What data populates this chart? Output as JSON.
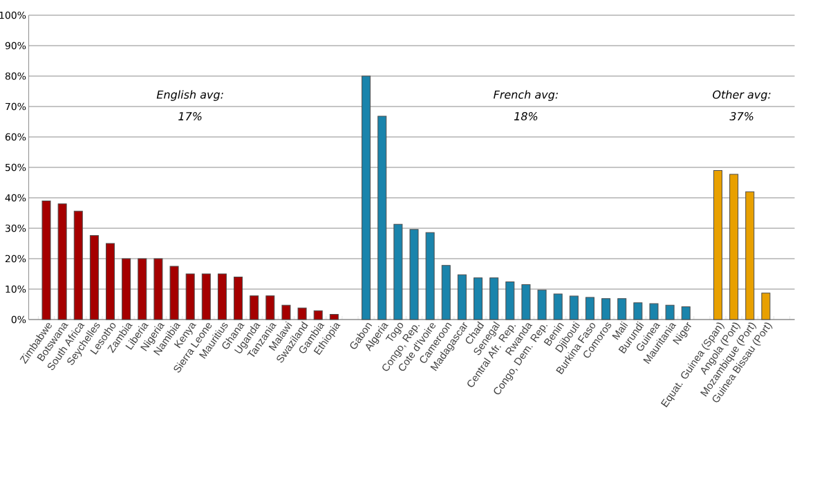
{
  "chart_data": {
    "type": "bar",
    "categories": [
      "Zimbabwe",
      "Botswana",
      "South Africa",
      "Seychelles",
      "Lesotho",
      "Zambia",
      "Liberia",
      "Nigeria",
      "Namibia",
      "Kenya",
      "Sierra Leone",
      "Mauritius",
      "Ghana",
      "Uganda",
      "Tanzania",
      "Malawi",
      "Swaziland",
      "Gambia",
      "Ethiopia",
      null,
      "Gabon",
      "Algeria",
      "Togo",
      "Congo, Rep.",
      "Cote d'Ivoire",
      "Cameroon",
      "Madagascar",
      "Chad",
      "Senegal",
      "Central Afr. Rep.",
      "Rwanda",
      "Congo, Dem. Rep.",
      "Benin",
      "Djibouti",
      "Burkina Faso",
      "Comoros",
      "Mali",
      "Burundi",
      "Guinea",
      "Mauritania",
      "Niger",
      null,
      "Equat. Guinea (Span)",
      "Angola (Port)",
      "Mozambique (Port)",
      "Guinea Bissau (Port)",
      null
    ],
    "values": [
      39,
      38,
      35.6,
      27.6,
      25,
      20,
      20,
      20,
      17.5,
      15,
      15,
      15,
      14,
      7.8,
      7.8,
      4.7,
      3.8,
      2.9,
      1.7,
      null,
      80,
      66.8,
      31.3,
      29.6,
      28.6,
      17.8,
      14.7,
      13.7,
      13.7,
      12.4,
      11.5,
      9.7,
      8.4,
      7.7,
      7.3,
      6.9,
      6.9,
      5.5,
      5.2,
      4.7,
      4.2,
      null,
      49,
      47.7,
      42,
      8.7,
      null
    ],
    "colors": [
      "#a50000",
      "#a50000",
      "#a50000",
      "#a50000",
      "#a50000",
      "#a50000",
      "#a50000",
      "#a50000",
      "#a50000",
      "#a50000",
      "#a50000",
      "#a50000",
      "#a50000",
      "#a50000",
      "#a50000",
      "#a50000",
      "#a50000",
      "#a50000",
      "#a50000",
      null,
      "#1a84ac",
      "#1a84ac",
      "#1a84ac",
      "#1a84ac",
      "#1a84ac",
      "#1a84ac",
      "#1a84ac",
      "#1a84ac",
      "#1a84ac",
      "#1a84ac",
      "#1a84ac",
      "#1a84ac",
      "#1a84ac",
      "#1a84ac",
      "#1a84ac",
      "#1a84ac",
      "#1a84ac",
      "#1a84ac",
      "#1a84ac",
      "#1a84ac",
      "#1a84ac",
      null,
      "#e8a000",
      "#e8a000",
      "#e8a000",
      "#e8a000",
      null
    ],
    "ylim": [
      0,
      100
    ],
    "yticks": [
      {
        "value": 0,
        "label": "0%"
      },
      {
        "value": 10,
        "label": "10%"
      },
      {
        "value": 20,
        "label": "20%"
      },
      {
        "value": 30,
        "label": "30%"
      },
      {
        "value": 40,
        "label": "40%"
      },
      {
        "value": 50,
        "label": "50%"
      },
      {
        "value": 60,
        "label": "60%"
      },
      {
        "value": 70,
        "label": "70%"
      },
      {
        "value": 80,
        "label": "80%"
      },
      {
        "value": 90,
        "label": "90%"
      },
      {
        "value": 100,
        "label": "100%"
      }
    ],
    "grid": "y",
    "annotations": [
      "English avg:",
      "17%",
      "French avg:",
      "18%",
      "Other avg:",
      "37%"
    ]
  }
}
